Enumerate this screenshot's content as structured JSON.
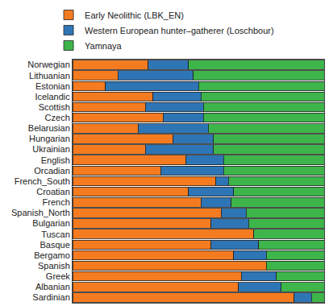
{
  "chart_data": {
    "type": "bar",
    "orientation": "horizontal",
    "stacked": true,
    "tick_labels": "y",
    "grid": false,
    "legend": "top-left",
    "xlim": [
      0,
      1
    ],
    "categories": [
      "Norwegian",
      "Lithuanian",
      "Estonian",
      "Icelandic",
      "Scottish",
      "Czech",
      "Belarusian",
      "Hungarian",
      "Ukrainian",
      "English",
      "Orcadian",
      "French_South",
      "Croatian",
      "French",
      "Spanish_North",
      "Bulgarian",
      "Tuscan",
      "Basque",
      "Bergamo",
      "Spanish",
      "Greek",
      "Albanian",
      "Sardinian"
    ],
    "series": [
      {
        "name": "Early Neolithic (LBK_EN)",
        "color": "#f47b20",
        "values": [
          0.3,
          0.18,
          0.13,
          0.32,
          0.29,
          0.36,
          0.26,
          0.4,
          0.29,
          0.45,
          0.35,
          0.57,
          0.46,
          0.51,
          0.59,
          0.55,
          0.72,
          0.55,
          0.64,
          0.77,
          0.67,
          0.66,
          0.88
        ]
      },
      {
        "name": "Western European hunter–gatherer (Loschbour)",
        "color": "#2e75b6",
        "values": [
          0.16,
          0.3,
          0.37,
          0.19,
          0.23,
          0.16,
          0.28,
          0.16,
          0.27,
          0.15,
          0.25,
          0.05,
          0.18,
          0.12,
          0.1,
          0.15,
          0.0,
          0.19,
          0.13,
          0.0,
          0.14,
          0.17,
          0.07
        ]
      },
      {
        "name": "Yamnaya",
        "color": "#3db54a",
        "values": [
          0.54,
          0.52,
          0.5,
          0.49,
          0.48,
          0.48,
          0.46,
          0.44,
          0.44,
          0.4,
          0.4,
          0.38,
          0.36,
          0.37,
          0.31,
          0.3,
          0.28,
          0.26,
          0.23,
          0.23,
          0.19,
          0.17,
          0.05
        ]
      }
    ]
  }
}
